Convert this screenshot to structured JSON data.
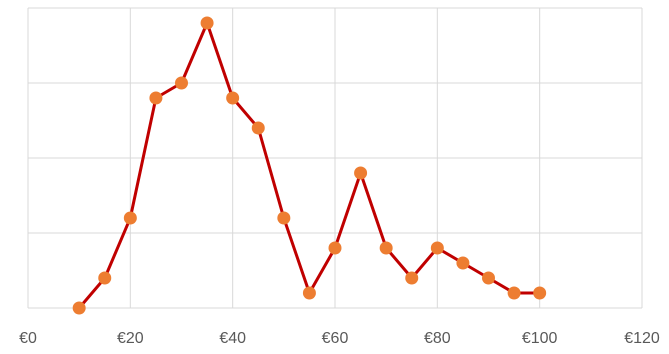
{
  "chart_data": {
    "type": "line",
    "title": "",
    "xlabel": "",
    "ylabel": "",
    "x_tick_labels": [
      "€0",
      "€20",
      "€40",
      "€60",
      "€80",
      "€100",
      "€120"
    ],
    "x_ticks": [
      0,
      20,
      40,
      60,
      80,
      100,
      120
    ],
    "xlim": [
      0,
      120
    ],
    "ylim": [
      0,
      19
    ],
    "y_gridlines": [
      0,
      5,
      10,
      15,
      20
    ],
    "y_tick_labels_visible": false,
    "grid": true,
    "legend": "none",
    "series": [
      {
        "x": [
          10,
          15,
          20,
          25,
          30,
          35,
          40,
          45,
          50,
          55,
          60,
          65,
          70,
          75,
          80,
          85,
          90,
          95,
          100
        ],
        "values": [
          0,
          2,
          6,
          14,
          15,
          19,
          14,
          12,
          6,
          1,
          4,
          9,
          4,
          2,
          4,
          3,
          2,
          1,
          1
        ],
        "line_color": "#C00000",
        "marker_color": "#ED7D31"
      }
    ]
  }
}
